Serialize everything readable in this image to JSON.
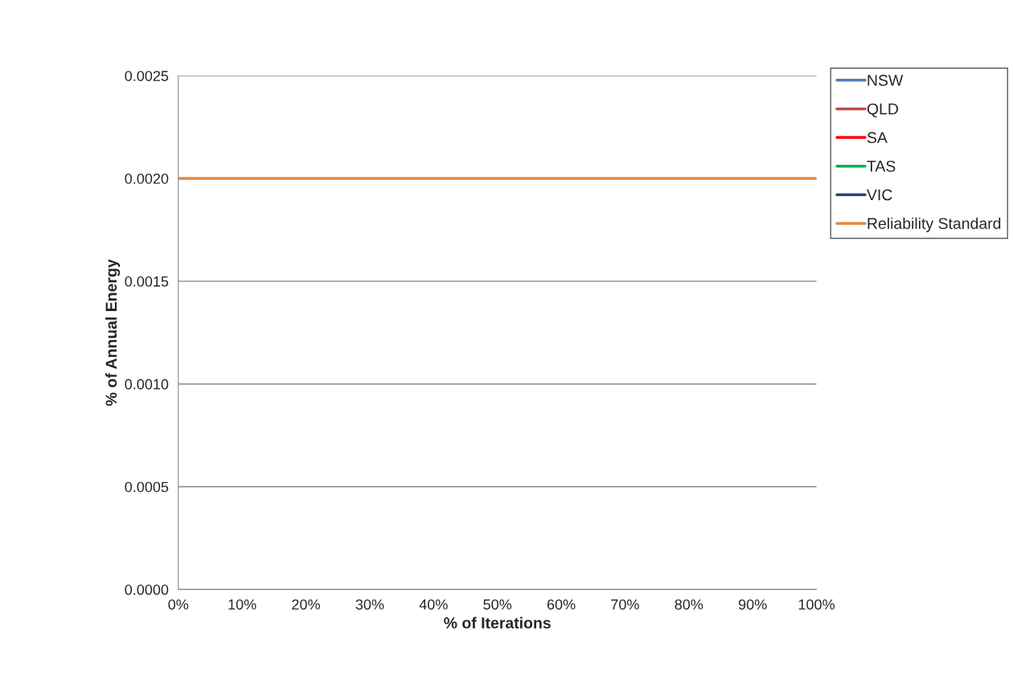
{
  "chart_data": {
    "type": "line",
    "xlabel": "% of Iterations",
    "ylabel": "% of Annual Energy",
    "xlim": [
      0,
      100
    ],
    "xticks": [
      {
        "value": 0,
        "label": "0%"
      },
      {
        "value": 10,
        "label": "10%"
      },
      {
        "value": 20,
        "label": "20%"
      },
      {
        "value": 30,
        "label": "30%"
      },
      {
        "value": 40,
        "label": "40%"
      },
      {
        "value": 50,
        "label": "50%"
      },
      {
        "value": 60,
        "label": "60%"
      },
      {
        "value": 70,
        "label": "70%"
      },
      {
        "value": 80,
        "label": "80%"
      },
      {
        "value": 90,
        "label": "90%"
      },
      {
        "value": 100,
        "label": "100%"
      }
    ],
    "ylim": [
      0,
      0.0025
    ],
    "yticks": [
      {
        "value": 0,
        "label": "0.0000"
      },
      {
        "value": 0.0005,
        "label": "0.0005"
      },
      {
        "value": 0.001,
        "label": "0.0010"
      },
      {
        "value": 0.0015,
        "label": "0.0015"
      },
      {
        "value": 0.002,
        "label": "0.0020"
      },
      {
        "value": 0.0025,
        "label": "0.0025"
      }
    ],
    "grid": "y",
    "legend": "top right",
    "marker": "none",
    "line_style": "solid",
    "x": [
      0,
      100
    ],
    "series": [
      {
        "name": "NSW",
        "color": "#4f81bd",
        "values": [
          null,
          null
        ]
      },
      {
        "name": "QLD",
        "color": "#c0504d",
        "values": [
          null,
          null
        ]
      },
      {
        "name": "SA",
        "color": "#ff0000",
        "values": [
          null,
          null
        ]
      },
      {
        "name": "TAS",
        "color": "#00b050",
        "values": [
          null,
          null
        ]
      },
      {
        "name": "VIC",
        "color": "#1f497d",
        "values": [
          null,
          null
        ]
      },
      {
        "name": "Reliability Standard",
        "color": "#e3883f",
        "values": [
          0.002,
          0.002
        ]
      }
    ]
  }
}
